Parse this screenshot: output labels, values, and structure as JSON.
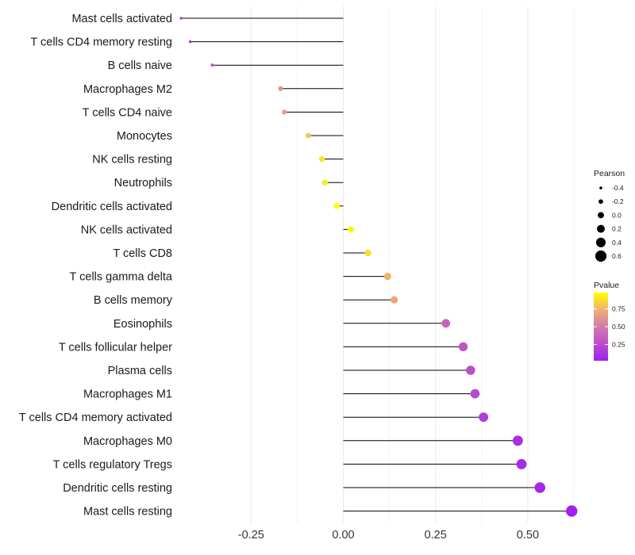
{
  "chart_data": {
    "type": "lollipop",
    "title": "",
    "xlabel": "",
    "ylabel": "",
    "xlim": [
      -0.44,
      0.64
    ],
    "xticks": [
      -0.25,
      0.0,
      0.25,
      0.5
    ],
    "xtick_labels": [
      "-0.25",
      "0.00",
      "0.25",
      "0.50"
    ],
    "grid": true,
    "categories": [
      "Mast cells activated",
      "T cells CD4 memory resting",
      "B cells naive",
      "Macrophages M2",
      "T cells CD4 naive",
      "Monocytes",
      "NK cells resting",
      "Neutrophils",
      "Dendritic cells activated",
      "NK cells activated",
      "T cells CD8",
      "T cells gamma delta",
      "B cells memory",
      "Eosinophils",
      "T cells follicular helper",
      "Plasma cells",
      "Macrophages M1",
      "T cells CD4 memory activated",
      "Macrophages M0",
      "T cells regulatory  Tregs ",
      "Dendritic cells resting",
      "Mast cells resting"
    ],
    "pearson": [
      -0.44,
      -0.415,
      -0.355,
      -0.17,
      -0.16,
      -0.095,
      -0.058,
      -0.05,
      -0.018,
      0.02,
      0.067,
      0.12,
      0.138,
      0.278,
      0.325,
      0.345,
      0.357,
      0.38,
      0.473,
      0.483,
      0.533,
      0.619
    ],
    "pvalue": [
      0.08,
      0.12,
      0.3,
      0.62,
      0.65,
      0.82,
      0.9,
      0.92,
      0.98,
      0.96,
      0.88,
      0.75,
      0.7,
      0.38,
      0.3,
      0.26,
      0.24,
      0.18,
      0.1,
      0.09,
      0.06,
      0.02
    ],
    "legend_size": {
      "title": "Pearson",
      "values": [
        -0.4,
        -0.2,
        0.0,
        0.2,
        0.4,
        0.6
      ],
      "labels": [
        "-0.4",
        "-0.2",
        "0.0",
        "0.2",
        "0.4",
        "0.6"
      ]
    },
    "legend_color": {
      "title": "Pvalue",
      "range": [
        0.02,
        0.98
      ],
      "ticks": [
        0.75,
        0.5,
        0.25
      ],
      "labels": [
        "0.75",
        "0.50",
        "0.25"
      ],
      "low_color": "#a020f0",
      "high_color": "#ffff00"
    },
    "legend_position": "right",
    "stem_color": "#000000",
    "grid_color": "#ebebeb"
  }
}
